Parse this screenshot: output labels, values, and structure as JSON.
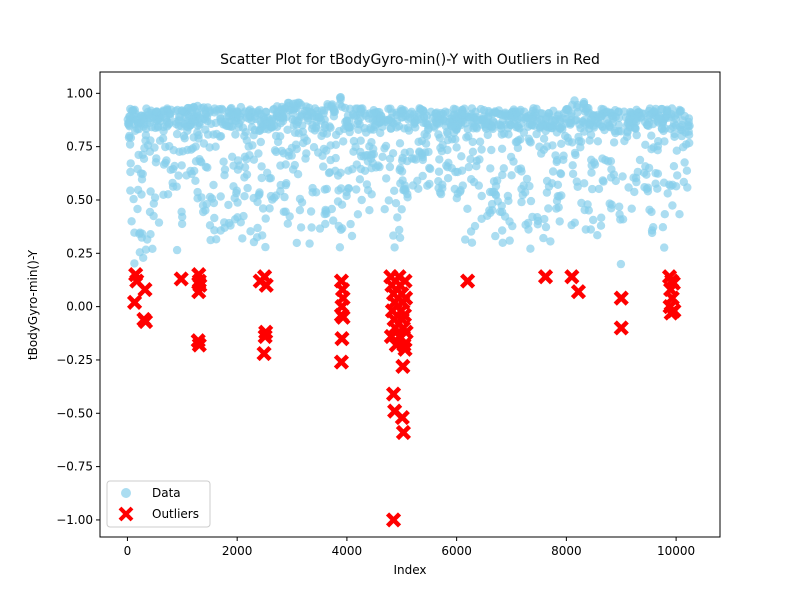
{
  "chart_data": {
    "type": "scatter",
    "title": "Scatter Plot for tBodyGyro-min()-Y with Outliers in Red",
    "xlabel": "Index",
    "ylabel": "tBodyGyro-min()-Y",
    "xlim": [
      -500,
      10800
    ],
    "ylim": [
      -1.08,
      1.1
    ],
    "xticks": [
      0,
      2000,
      4000,
      6000,
      8000,
      10000
    ],
    "yticks": [
      -1.0,
      -0.75,
      -0.5,
      -0.25,
      0.0,
      0.25,
      0.5,
      0.75,
      1.0
    ],
    "grid": false,
    "legend_position": "lower-left",
    "series": [
      {
        "name": "Data",
        "color": "#87CEEB",
        "marker": "circle",
        "band_description": "dense band of values between about 0.15 and 1.0 across index 0-10200",
        "upper_envelope": [
          [
            0,
            0.93
          ],
          [
            500,
            0.93
          ],
          [
            1000,
            0.93
          ],
          [
            1500,
            0.95
          ],
          [
            2000,
            0.94
          ],
          [
            2500,
            0.92
          ],
          [
            3000,
            0.97
          ],
          [
            3500,
            0.93
          ],
          [
            3700,
            0.96
          ],
          [
            3800,
            0.97
          ],
          [
            3850,
            1.0
          ],
          [
            4000,
            0.93
          ],
          [
            5000,
            0.93
          ],
          [
            6000,
            0.93
          ],
          [
            7000,
            0.93
          ],
          [
            8000,
            0.93
          ],
          [
            8200,
            0.98
          ],
          [
            8500,
            0.93
          ],
          [
            9000,
            0.92
          ],
          [
            9500,
            0.93
          ],
          [
            10000,
            0.93
          ],
          [
            10200,
            0.92
          ]
        ],
        "lower_envelope": [
          [
            0,
            0.65
          ],
          [
            100,
            0.2
          ],
          [
            400,
            0.2
          ],
          [
            700,
            0.45
          ],
          [
            900,
            0.16
          ],
          [
            1200,
            0.5
          ],
          [
            1400,
            0.24
          ],
          [
            1800,
            0.2
          ],
          [
            2200,
            0.2
          ],
          [
            2500,
            0.16
          ],
          [
            2700,
            0.5
          ],
          [
            3000,
            0.3
          ],
          [
            3400,
            0.24
          ],
          [
            3800,
            0.2
          ],
          [
            4000,
            0.18
          ],
          [
            4200,
            0.3
          ],
          [
            4600,
            0.55
          ],
          [
            4900,
            0.17
          ],
          [
            5100,
            0.45
          ],
          [
            5500,
            0.55
          ],
          [
            5900,
            0.45
          ],
          [
            6200,
            0.22
          ],
          [
            6500,
            0.4
          ],
          [
            6800,
            0.23
          ],
          [
            7200,
            0.3
          ],
          [
            7600,
            0.2
          ],
          [
            8000,
            0.4
          ],
          [
            8200,
            0.3
          ],
          [
            8400,
            0.25
          ],
          [
            8800,
            0.4
          ],
          [
            9000,
            0.17
          ],
          [
            9300,
            0.5
          ],
          [
            9700,
            0.2
          ],
          [
            10000,
            0.3
          ],
          [
            10200,
            0.37
          ]
        ]
      },
      {
        "name": "Outliers",
        "color": "#FF0000",
        "marker": "x",
        "points": [
          [
            150,
            0.15
          ],
          [
            170,
            0.12
          ],
          [
            130,
            0.02
          ],
          [
            320,
            0.08
          ],
          [
            300,
            -0.06
          ],
          [
            330,
            -0.07
          ],
          [
            980,
            0.13
          ],
          [
            1300,
            0.15
          ],
          [
            1310,
            0.12
          ],
          [
            1320,
            0.1
          ],
          [
            1300,
            0.07
          ],
          [
            1290,
            -0.16
          ],
          [
            1310,
            -0.18
          ],
          [
            2420,
            0.12
          ],
          [
            2500,
            0.14
          ],
          [
            2530,
            0.1
          ],
          [
            2520,
            -0.12
          ],
          [
            2510,
            -0.14
          ],
          [
            2490,
            -0.22
          ],
          [
            3900,
            0.12
          ],
          [
            3920,
            0.08
          ],
          [
            3930,
            0.04
          ],
          [
            3910,
            0.0
          ],
          [
            3900,
            -0.04
          ],
          [
            3930,
            -0.05
          ],
          [
            3910,
            -0.15
          ],
          [
            3900,
            -0.26
          ],
          [
            4800,
            0.14
          ],
          [
            4820,
            0.1
          ],
          [
            4850,
            0.06
          ],
          [
            4870,
            0.02
          ],
          [
            4830,
            -0.02
          ],
          [
            4860,
            -0.06
          ],
          [
            4880,
            -0.1
          ],
          [
            4810,
            -0.14
          ],
          [
            4900,
            -0.18
          ],
          [
            4950,
            0.14
          ],
          [
            4970,
            0.1
          ],
          [
            5000,
            0.06
          ],
          [
            5020,
            0.02
          ],
          [
            4990,
            -0.02
          ],
          [
            5010,
            -0.06
          ],
          [
            5030,
            -0.1
          ],
          [
            4960,
            -0.14
          ],
          [
            5040,
            -0.18
          ],
          [
            5060,
            0.12
          ],
          [
            5070,
            0.04
          ],
          [
            5050,
            -0.04
          ],
          [
            5080,
            -0.12
          ],
          [
            5060,
            -0.2
          ],
          [
            5020,
            -0.28
          ],
          [
            4850,
            -0.41
          ],
          [
            4870,
            -0.49
          ],
          [
            5010,
            -0.52
          ],
          [
            5030,
            -0.59
          ],
          [
            4850,
            -1.0
          ],
          [
            6200,
            0.12
          ],
          [
            7620,
            0.14
          ],
          [
            8100,
            0.14
          ],
          [
            8220,
            0.07
          ],
          [
            9000,
            0.04
          ],
          [
            9000,
            -0.1
          ],
          [
            9880,
            0.14
          ],
          [
            9920,
            0.12
          ],
          [
            9900,
            0.08
          ],
          [
            9930,
            0.04
          ],
          [
            9890,
            0.0
          ],
          [
            9910,
            -0.03
          ],
          [
            9950,
            0.11
          ],
          [
            9960,
            -0.02
          ]
        ]
      }
    ]
  }
}
